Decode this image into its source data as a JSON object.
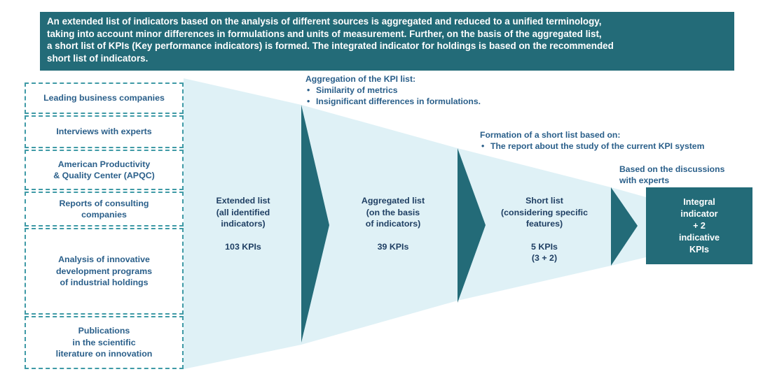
{
  "header": {
    "lines": [
      "An extended list of indicators based on the analysis of different sources is aggregated and reduced to a unified terminology,",
      "taking into account minor differences in formulations and units of measurement. Further, on the basis of the aggregated list,",
      "a short list of KPIs (Key performance indicators) is formed. The integrated indicator for holdings is based on the recommended",
      "short list of indicators."
    ]
  },
  "sources": [
    [
      "Leading business companies"
    ],
    [
      "Interviews with experts"
    ],
    [
      "American Productivity",
      "& Quality Center (APQC)"
    ],
    [
      "Reports of consulting",
      "companies"
    ],
    [
      "Analysis of innovative",
      "development programs",
      "of industrial holdings"
    ],
    [
      "Publications",
      "in the scientific",
      "literature on innovation"
    ]
  ],
  "stages": [
    {
      "lines": [
        "Extended list",
        "(all identified",
        "indicators)"
      ],
      "count": "103 KPIs"
    },
    {
      "lines": [
        "Aggregated list",
        "(on the basis",
        "of indicators)"
      ],
      "count": "39 KPIs"
    },
    {
      "lines": [
        "Short list",
        "(considering specific",
        "features)"
      ],
      "count": "5 KPIs",
      "count2": "(3 + 2)"
    }
  ],
  "notes": {
    "aggregation": {
      "title": "Aggregation of the KPI list:",
      "items": [
        "Similarity of metrics",
        "Insignificant differences in formulations."
      ]
    },
    "formation": {
      "title": "Formation of a short list based on:",
      "items": [
        "The report about the study of the current KPI system"
      ]
    },
    "discussion": {
      "lines": [
        "Based on the discussions",
        "with experts"
      ]
    }
  },
  "final": {
    "lines": [
      "Integral",
      "indicator",
      "+ 2",
      "indicative",
      "KPIs"
    ]
  },
  "colors": {
    "teal_dark": "#236b78",
    "funnel_fill": "#dff1f6",
    "dashed_border": "#3f9aa6",
    "text": "#2a5f8a"
  }
}
